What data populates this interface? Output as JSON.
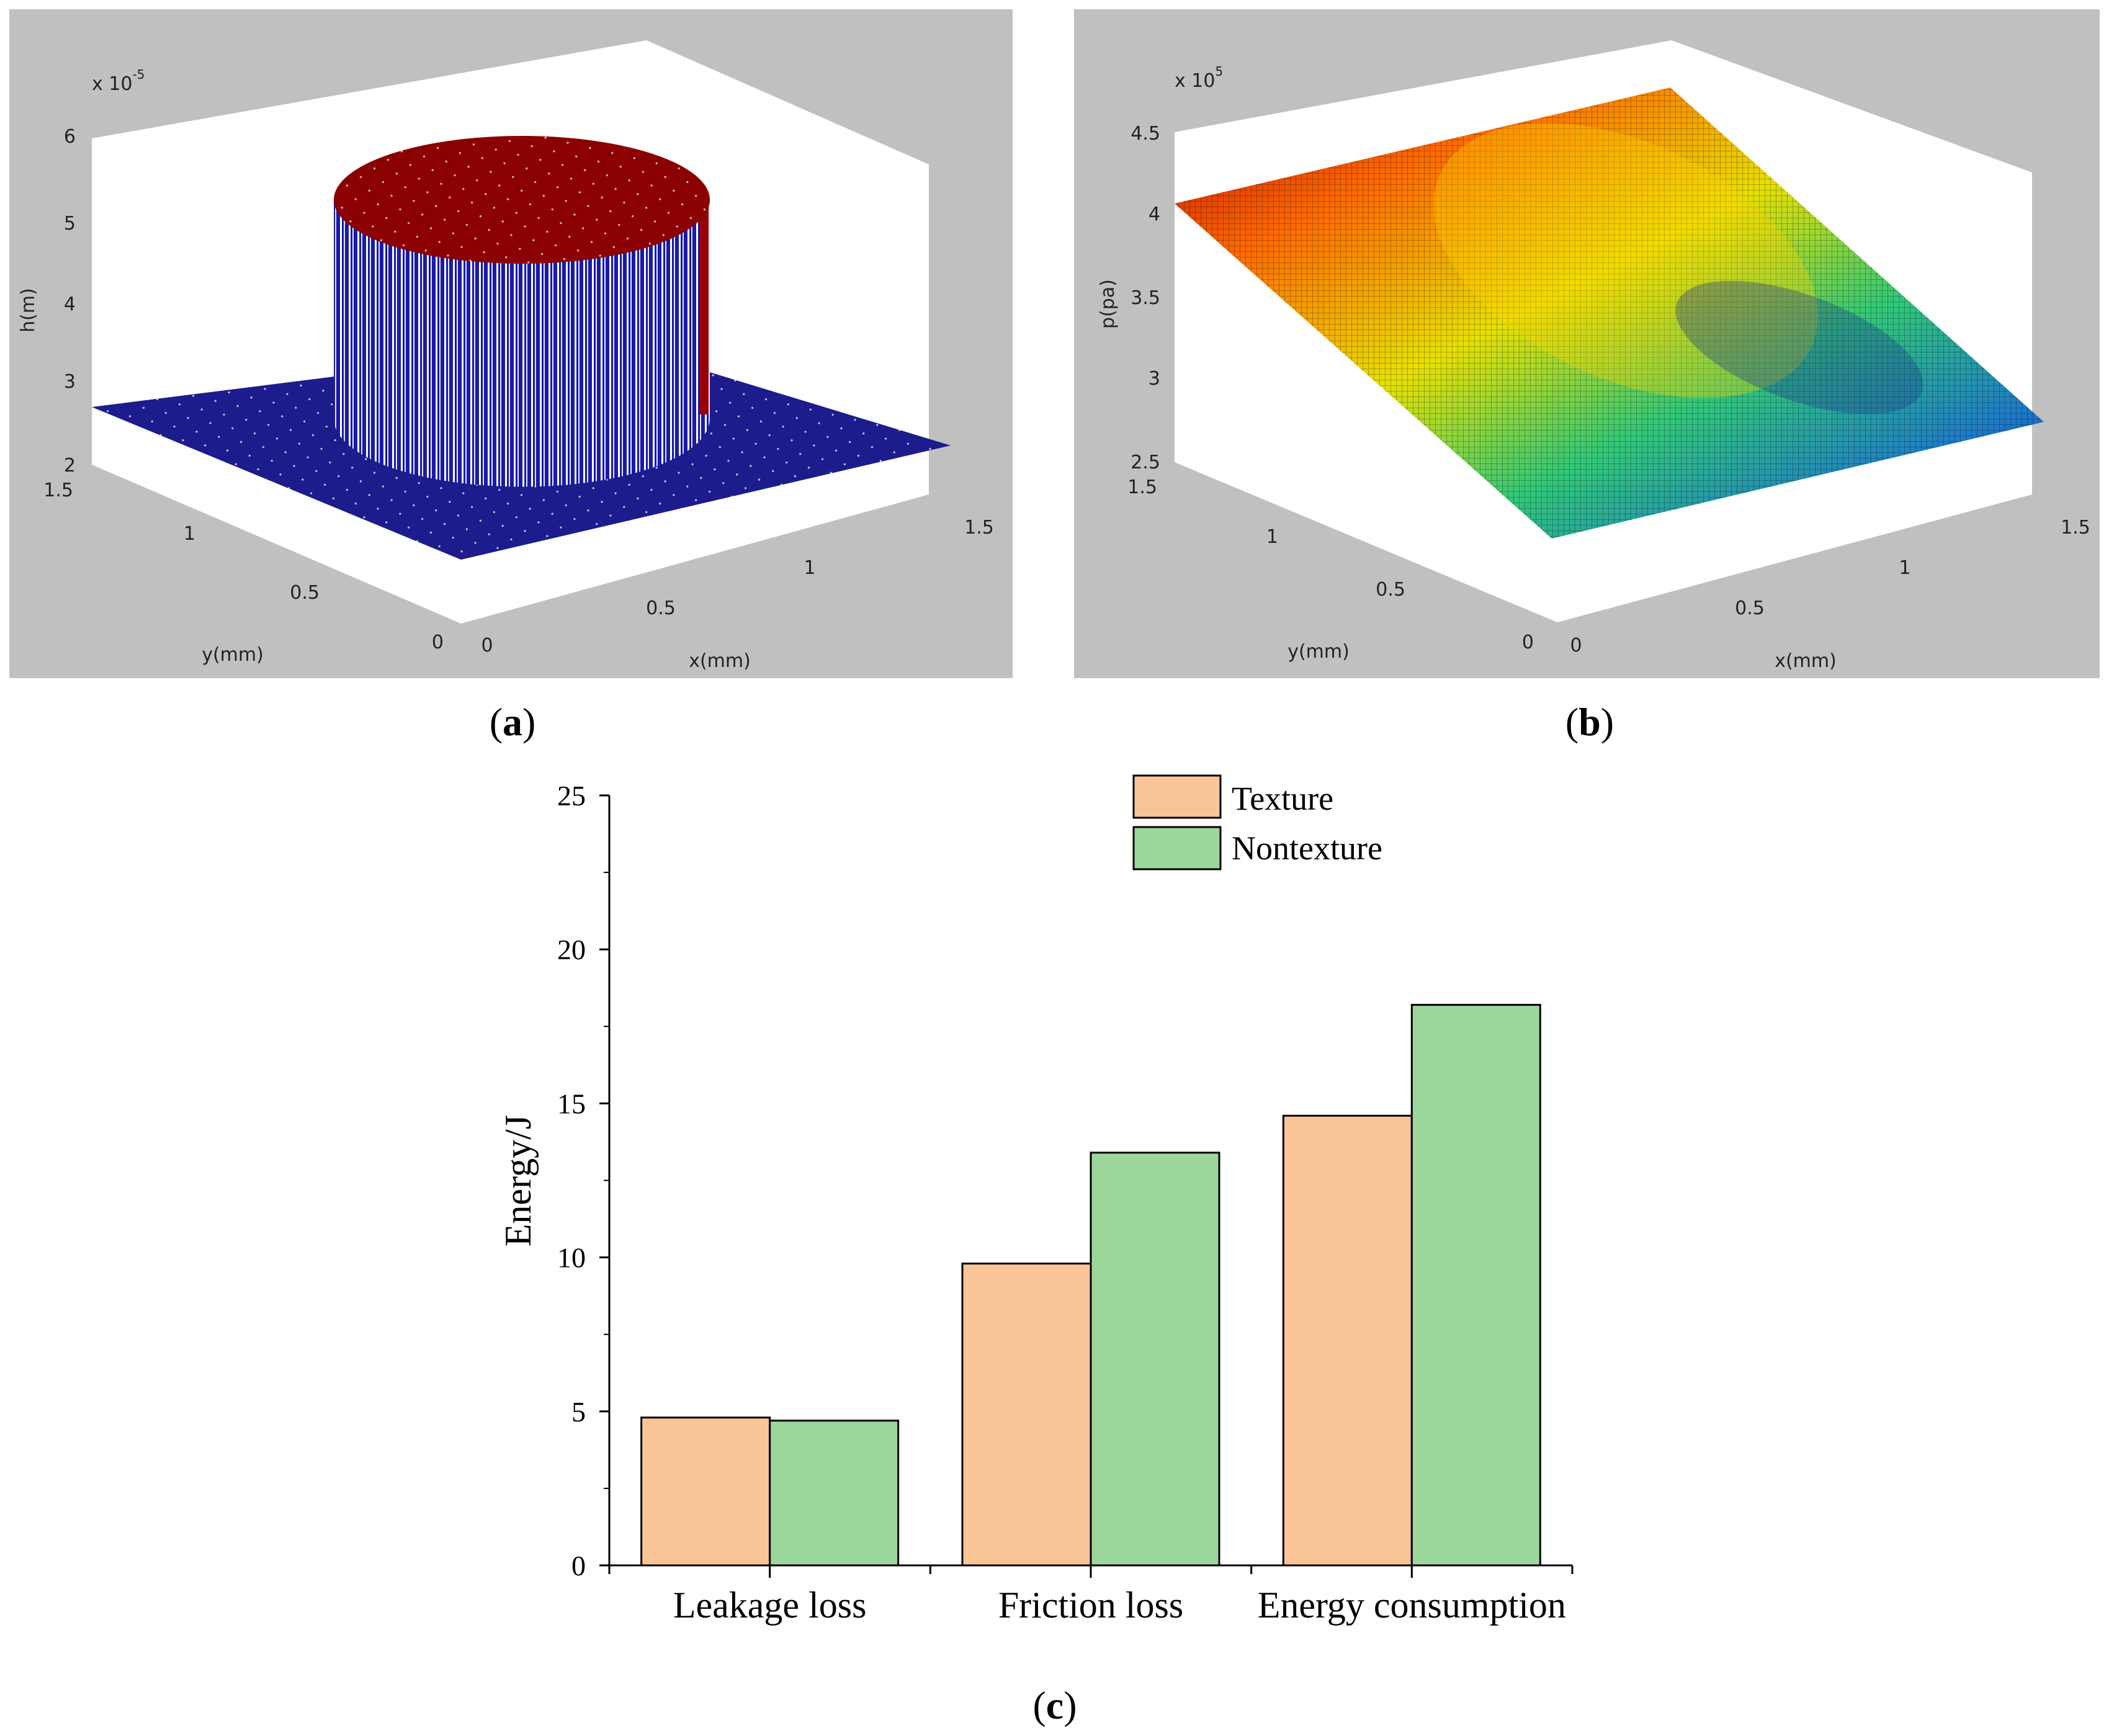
{
  "captions": {
    "a": "a",
    "b": "b",
    "c": "c"
  },
  "chart_data": [
    {
      "type": "surface3d",
      "panel": "a",
      "zlabel": "h(m)",
      "xlabel": "x(mm)",
      "ylabel": "y(mm)",
      "z_exponent": "x 10",
      "z_exponent_power": "-5",
      "zlim": [
        2,
        6
      ],
      "xlim": [
        0,
        1.5
      ],
      "ylim": [
        0,
        1.5
      ],
      "z_ticks": [
        "2",
        "3",
        "4",
        "5",
        "6"
      ],
      "x_ticks": [
        "0",
        "0.5",
        "1",
        "1.5"
      ],
      "y_ticks": [
        "0",
        "0.5",
        "1",
        "1.5"
      ],
      "base_height": 2.7,
      "dimple_height": 5.7,
      "description_colors": {
        "base": "#1c1c8c",
        "dimple_top": "#8b0000",
        "wall": "#1a1aa8"
      }
    },
    {
      "type": "surface3d",
      "panel": "b",
      "zlabel": "p(pa)",
      "xlabel": "x(mm)",
      "ylabel": "y(mm)",
      "z_exponent": "x 10",
      "z_exponent_power": "5",
      "zlim": [
        2.5,
        4.5
      ],
      "xlim": [
        0,
        1.5
      ],
      "ylim": [
        0,
        1.5
      ],
      "z_ticks": [
        "2.5",
        "3",
        "3.5",
        "4",
        "4.5"
      ],
      "x_ticks": [
        "0",
        "0.5",
        "1",
        "1.5"
      ],
      "y_ticks": [
        "0",
        "0.5",
        "1",
        "1.5"
      ],
      "inlet_pressure": 4.1,
      "outlet_pressure": 2.6
    },
    {
      "type": "bar",
      "panel": "c",
      "categories": [
        "Leakage loss",
        "Friction loss",
        "Energy consumption"
      ],
      "series": [
        {
          "name": "Texture",
          "values": [
            4.8,
            9.8,
            14.6
          ],
          "color": "#f9c596"
        },
        {
          "name": "Nontexture",
          "values": [
            4.7,
            13.4,
            18.2
          ],
          "color": "#9dd69b"
        }
      ],
      "title": "",
      "xlabel": "",
      "ylabel": "Energy/J",
      "ylim": [
        0,
        25
      ],
      "yticks": [
        0,
        5,
        10,
        15,
        20,
        25
      ],
      "legend_position": "top-right"
    }
  ]
}
